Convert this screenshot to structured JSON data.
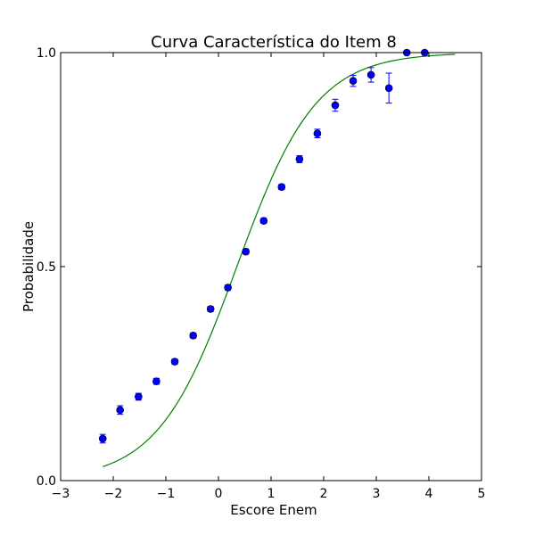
{
  "chart_data": {
    "type": "scatter",
    "title": "Curva Característica do Item 8",
    "xlabel": "Escore Enem",
    "ylabel": "Probabilidade",
    "xlim": [
      -3,
      5
    ],
    "ylim": [
      0.0,
      1.0
    ],
    "x_ticks": [
      -3,
      -2,
      -1,
      0,
      1,
      2,
      3,
      4,
      5
    ],
    "x_tick_labels": [
      "−3",
      "−2",
      "−1",
      "0",
      "1",
      "2",
      "3",
      "4",
      "5"
    ],
    "y_ticks": [
      0.0,
      0.5,
      1.0
    ],
    "y_tick_labels": [
      "0.0",
      "0.5",
      "1.0"
    ],
    "grid": false,
    "legend": "none",
    "series": [
      {
        "kind": "points_with_error_bars",
        "color": "#0000ff",
        "x": [
          -2.2,
          -1.87,
          -1.52,
          -1.18,
          -0.83,
          -0.48,
          -0.15,
          0.18,
          0.52,
          0.86,
          1.2,
          1.54,
          1.88,
          2.22,
          2.56,
          2.9,
          3.24,
          3.58,
          3.92
        ],
        "y": [
          0.098,
          0.165,
          0.196,
          0.232,
          0.278,
          0.339,
          0.401,
          0.451,
          0.535,
          0.607,
          0.686,
          0.751,
          0.811,
          0.877,
          0.934,
          0.948,
          0.917,
          1.0,
          1.0
        ],
        "err": [
          0.01,
          0.01,
          0.008,
          0.007,
          0.006,
          0.006,
          0.006,
          0.006,
          0.006,
          0.006,
          0.006,
          0.008,
          0.01,
          0.014,
          0.013,
          0.017,
          0.035,
          0.0,
          0.0
        ]
      },
      {
        "kind": "curve",
        "color": "#008000",
        "model": "logistic",
        "a": 1.33,
        "b": 0.35,
        "x_range": [
          -2.2,
          4.5
        ]
      }
    ]
  }
}
